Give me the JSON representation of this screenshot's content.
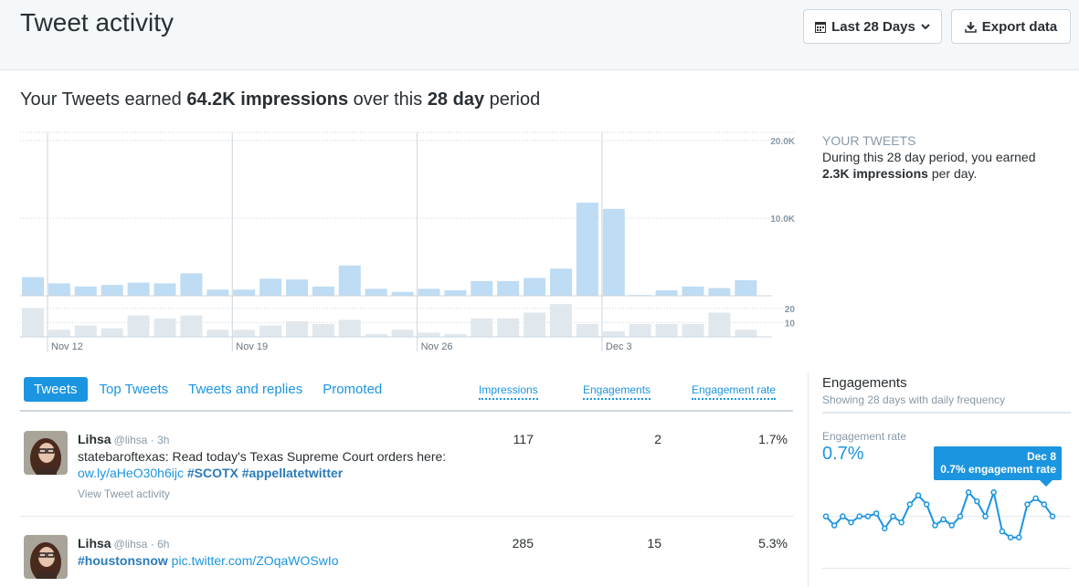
{
  "header": {
    "title": "Tweet activity",
    "range_label": "Last 28 Days",
    "export_label": "Export data"
  },
  "summary": {
    "prefix": "Your Tweets earned ",
    "impressions": "64.2K impressions",
    "middle": " over this ",
    "period": "28 day",
    "suffix": " period"
  },
  "sidebar": {
    "label": "YOUR TWEETS",
    "text_prefix": "During this 28 day period, you earned ",
    "daily_impressions": "2.3K impressions",
    "text_suffix": " per day."
  },
  "chart_data": {
    "type": "bar",
    "x_labels": [
      "Nov 12",
      "Nov 19",
      "Nov 26",
      "Dec 3"
    ],
    "label_positions": [
      0,
      7,
      14,
      21
    ],
    "impressions": {
      "ticks": [
        "20.0K",
        "10.0K"
      ],
      "tick_values": [
        20000,
        10000
      ],
      "ylim": [
        0,
        20000
      ],
      "values": [
        2400,
        1600,
        1200,
        1400,
        1700,
        1600,
        2900,
        800,
        800,
        2200,
        2100,
        1200,
        3900,
        900,
        500,
        900,
        700,
        1900,
        1900,
        2300,
        3500,
        12000,
        11200,
        100,
        700,
        1200,
        1000,
        2000
      ]
    },
    "engagements": {
      "ticks": [
        "20",
        "10"
      ],
      "tick_values": [
        20,
        10
      ],
      "ylim": [
        0,
        25
      ],
      "values": [
        20,
        5,
        8,
        6,
        15,
        13,
        15,
        5,
        5,
        8,
        11,
        9,
        12,
        2,
        5,
        3,
        2,
        13,
        13,
        17,
        23,
        9,
        4,
        9,
        9,
        9,
        17,
        5
      ]
    },
    "colors": {
      "impressions": "#bedcf3",
      "engagements": "#e1e8ed",
      "highlight": "#1b95e0"
    }
  },
  "tabs": [
    {
      "label": "Tweets",
      "active": true
    },
    {
      "label": "Top Tweets",
      "active": false
    },
    {
      "label": "Tweets and replies",
      "active": false
    },
    {
      "label": "Promoted",
      "active": false
    }
  ],
  "columns": {
    "impressions": "Impressions",
    "engagements": "Engagements",
    "rate": "Engagement rate"
  },
  "tweets": [
    {
      "name": "Lihsa",
      "meta": "@lihsa · 3h",
      "text": "statebaroftexas: Read today's Texas Supreme Court orders here: ",
      "link": "ow.ly/aHeO30h6ijc",
      "tag1": "#SCOTX",
      "tag2": "#appellatetwitter",
      "activity": "View Tweet activity",
      "impressions": "117",
      "engagements": "2",
      "rate": "1.7%"
    },
    {
      "name": "Lihsa",
      "meta": "@lihsa · 6h",
      "tag": "#houstonsnow",
      "link": "pic.twitter.com/ZOqaWOSwIo",
      "impressions": "285",
      "engagements": "15",
      "rate": "5.3%"
    }
  ],
  "engagements_panel": {
    "title": "Engagements",
    "subtitle": "Showing 28 days with daily frequency",
    "rate_label": "Engagement rate",
    "rate_value": "0.7%",
    "tooltip_date": "Dec 8",
    "tooltip_text": "0.7% engagement rate",
    "sparkline": [
      0.6,
      0.3,
      0.6,
      0.4,
      0.6,
      0.6,
      0.7,
      0.2,
      0.6,
      0.4,
      1.0,
      1.3,
      1.0,
      0.3,
      0.5,
      0.3,
      0.6,
      1.4,
      1.1,
      0.6,
      1.4,
      0.1,
      -0.1,
      -0.1,
      1.0,
      1.2,
      1.0,
      0.6
    ]
  }
}
